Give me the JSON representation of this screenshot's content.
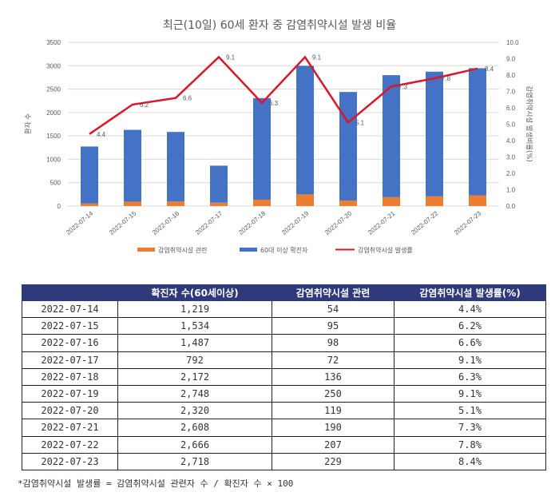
{
  "chart_data": {
    "type": "bar+line",
    "title": "최근(10일) 60세 환자 중 감염취약시설 발생 비율",
    "categories": [
      "2022-07-14",
      "2022-07-15",
      "2022-07-16",
      "2022-07-17",
      "2022-07-18",
      "2022-07-19",
      "2022-07-20",
      "2022-07-21",
      "2022-07-22",
      "2022-07-23"
    ],
    "series": [
      {
        "name": "감염취약시설 관련",
        "type": "stacked-bar",
        "axis": "left",
        "color": "#ed7d31",
        "values": [
          54,
          95,
          98,
          72,
          136,
          250,
          119,
          190,
          207,
          229
        ]
      },
      {
        "name": "60대 이상 확진자",
        "type": "stacked-bar",
        "axis": "left",
        "color": "#4472c4",
        "values": [
          1219,
          1534,
          1487,
          792,
          2172,
          2748,
          2320,
          2608,
          2666,
          2718
        ]
      },
      {
        "name": "감염취약시설 발생률",
        "type": "line",
        "axis": "right",
        "color": "#d9162a",
        "values": [
          4.4,
          6.2,
          6.6,
          9.1,
          6.3,
          9.1,
          5.1,
          7.3,
          7.8,
          8.4
        ],
        "data_labels": [
          "4.4",
          "6.2",
          "6.6",
          "9.1",
          "6.3",
          "9.1",
          "5.1",
          "7.3",
          "7.8",
          "8.4"
        ]
      }
    ],
    "ylabel": "환자 수",
    "ylim": [
      0,
      3500
    ],
    "yticks": [
      "0",
      "500",
      "1000",
      "1500",
      "2000",
      "2500",
      "3000",
      "3500"
    ],
    "y2label": "감염취약시설 발생비율(%)",
    "y2lim": [
      0,
      10
    ],
    "y2ticks": [
      "0.0",
      "1.0",
      "2.0",
      "3.0",
      "4.0",
      "5.0",
      "6.0",
      "7.0",
      "8.0",
      "9.0",
      "10.0"
    ],
    "grid": true,
    "legend": "bottom"
  },
  "table": {
    "headers": [
      "",
      "확진자 수(60세이상)",
      "감염취약시설 관련",
      "감염취약시설 발생률(%)"
    ],
    "rows": [
      [
        "2022-07-14",
        "1,219",
        "54",
        "4.4%"
      ],
      [
        "2022-07-15",
        "1,534",
        "95",
        "6.2%"
      ],
      [
        "2022-07-16",
        "1,487",
        "98",
        "6.6%"
      ],
      [
        "2022-07-17",
        "792",
        "72",
        "9.1%"
      ],
      [
        "2022-07-18",
        "2,172",
        "136",
        "6.3%"
      ],
      [
        "2022-07-19",
        "2,748",
        "250",
        "9.1%"
      ],
      [
        "2022-07-20",
        "2,320",
        "119",
        "5.1%"
      ],
      [
        "2022-07-21",
        "2,608",
        "190",
        "7.3%"
      ],
      [
        "2022-07-22",
        "2,666",
        "207",
        "7.8%"
      ],
      [
        "2022-07-23",
        "2,718",
        "229",
        "8.4%"
      ]
    ]
  },
  "footnote": "*감염취약시설 발생률 = 감염취약시설 관련자 수 / 확진자 수 × 100"
}
